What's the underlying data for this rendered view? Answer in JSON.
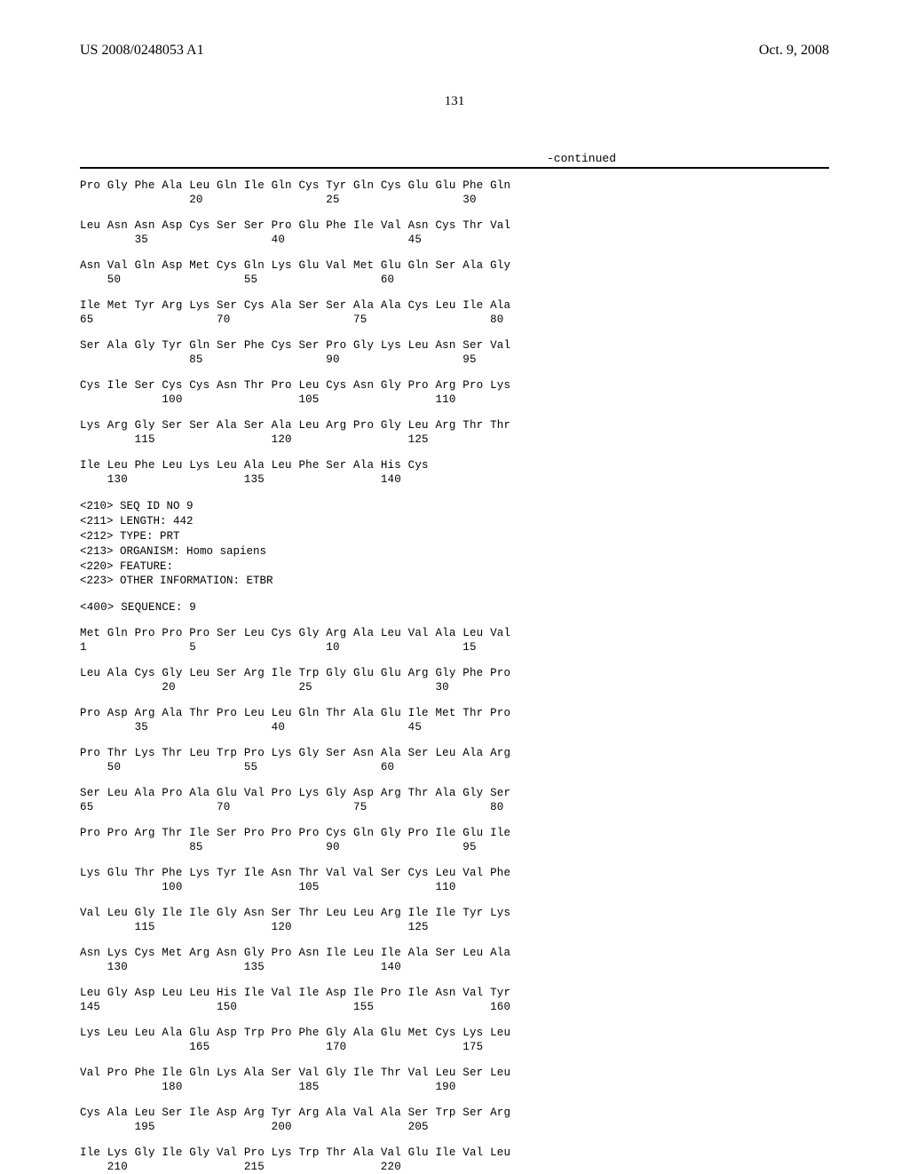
{
  "header": {
    "pub_number": "US 2008/0248053 A1",
    "pub_date": "Oct. 9, 2008"
  },
  "page_number": "131",
  "continued_label": "-continued",
  "sequence1": [
    {
      "aa": "Pro Gly Phe Ala Leu Gln Ile Gln Cys Tyr Gln Cys Glu Glu Phe Gln",
      "nums": "                20                  25                  30"
    },
    {
      "aa": "Leu Asn Asn Asp Cys Ser Ser Pro Glu Phe Ile Val Asn Cys Thr Val",
      "nums": "        35                  40                  45"
    },
    {
      "aa": "Asn Val Gln Asp Met Cys Gln Lys Glu Val Met Glu Gln Ser Ala Gly",
      "nums": "    50                  55                  60"
    },
    {
      "aa": "Ile Met Tyr Arg Lys Ser Cys Ala Ser Ser Ala Ala Cys Leu Ile Ala",
      "nums": "65                  70                  75                  80"
    },
    {
      "aa": "Ser Ala Gly Tyr Gln Ser Phe Cys Ser Pro Gly Lys Leu Asn Ser Val",
      "nums": "                85                  90                  95"
    },
    {
      "aa": "Cys Ile Ser Cys Cys Asn Thr Pro Leu Cys Asn Gly Pro Arg Pro Lys",
      "nums": "            100                 105                 110"
    },
    {
      "aa": "Lys Arg Gly Ser Ser Ala Ser Ala Leu Arg Pro Gly Leu Arg Thr Thr",
      "nums": "        115                 120                 125"
    },
    {
      "aa": "Ile Leu Phe Leu Lys Leu Ala Leu Phe Ser Ala His Cys",
      "nums": "    130                 135                 140"
    }
  ],
  "metadata": [
    "<210> SEQ ID NO 9",
    "<211> LENGTH: 442",
    "<212> TYPE: PRT",
    "<213> ORGANISM: Homo sapiens",
    "<220> FEATURE:",
    "<223> OTHER INFORMATION: ETBR"
  ],
  "sequence_label": "<400> SEQUENCE: 9",
  "sequence2": [
    {
      "aa": "Met Gln Pro Pro Pro Ser Leu Cys Gly Arg Ala Leu Val Ala Leu Val",
      "nums": "1               5                   10                  15"
    },
    {
      "aa": "Leu Ala Cys Gly Leu Ser Arg Ile Trp Gly Glu Glu Arg Gly Phe Pro",
      "nums": "            20                  25                  30"
    },
    {
      "aa": "Pro Asp Arg Ala Thr Pro Leu Leu Gln Thr Ala Glu Ile Met Thr Pro",
      "nums": "        35                  40                  45"
    },
    {
      "aa": "Pro Thr Lys Thr Leu Trp Pro Lys Gly Ser Asn Ala Ser Leu Ala Arg",
      "nums": "    50                  55                  60"
    },
    {
      "aa": "Ser Leu Ala Pro Ala Glu Val Pro Lys Gly Asp Arg Thr Ala Gly Ser",
      "nums": "65                  70                  75                  80"
    },
    {
      "aa": "Pro Pro Arg Thr Ile Ser Pro Pro Pro Cys Gln Gly Pro Ile Glu Ile",
      "nums": "                85                  90                  95"
    },
    {
      "aa": "Lys Glu Thr Phe Lys Tyr Ile Asn Thr Val Val Ser Cys Leu Val Phe",
      "nums": "            100                 105                 110"
    },
    {
      "aa": "Val Leu Gly Ile Ile Gly Asn Ser Thr Leu Leu Arg Ile Ile Tyr Lys",
      "nums": "        115                 120                 125"
    },
    {
      "aa": "Asn Lys Cys Met Arg Asn Gly Pro Asn Ile Leu Ile Ala Ser Leu Ala",
      "nums": "    130                 135                 140"
    },
    {
      "aa": "Leu Gly Asp Leu Leu His Ile Val Ile Asp Ile Pro Ile Asn Val Tyr",
      "nums": "145                 150                 155                 160"
    },
    {
      "aa": "Lys Leu Leu Ala Glu Asp Trp Pro Phe Gly Ala Glu Met Cys Lys Leu",
      "nums": "                165                 170                 175"
    },
    {
      "aa": "Val Pro Phe Ile Gln Lys Ala Ser Val Gly Ile Thr Val Leu Ser Leu",
      "nums": "            180                 185                 190"
    },
    {
      "aa": "Cys Ala Leu Ser Ile Asp Arg Tyr Arg Ala Val Ala Ser Trp Ser Arg",
      "nums": "        195                 200                 205"
    },
    {
      "aa": "Ile Lys Gly Ile Gly Val Pro Lys Trp Thr Ala Val Glu Ile Val Leu",
      "nums": "    210                 215                 220"
    }
  ]
}
